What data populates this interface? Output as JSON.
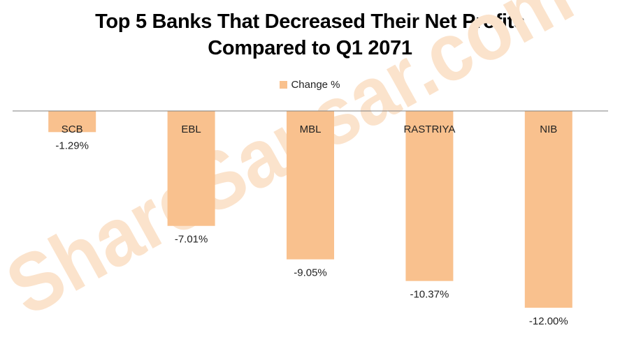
{
  "chart_data": {
    "type": "bar",
    "title_line1": "Top 5 Banks That Decreased Their Net Profits",
    "title_line2": "Compared to Q1 2071",
    "xlabel": "",
    "ylabel": "",
    "legend": {
      "label": "Change %",
      "placement": "top-center"
    },
    "categories": [
      "SCB",
      "EBL",
      "MBL",
      "RASTRIYA",
      "NIB"
    ],
    "series": [
      {
        "name": "Change %",
        "values": [
          -1.29,
          -7.01,
          -9.05,
          -10.37,
          -12.0
        ],
        "color": "#f9c18e"
      }
    ],
    "data_labels": [
      "-1.29%",
      "-7.01%",
      "-9.05%",
      "-10.37%",
      "-12.00%"
    ],
    "ylim": [
      -12.5,
      0
    ],
    "grid": false,
    "axis_color": "#7f7f7f",
    "label_color": "#222222"
  },
  "watermark": {
    "text": "ShareSansar.com",
    "color": "#fbe3cc"
  }
}
